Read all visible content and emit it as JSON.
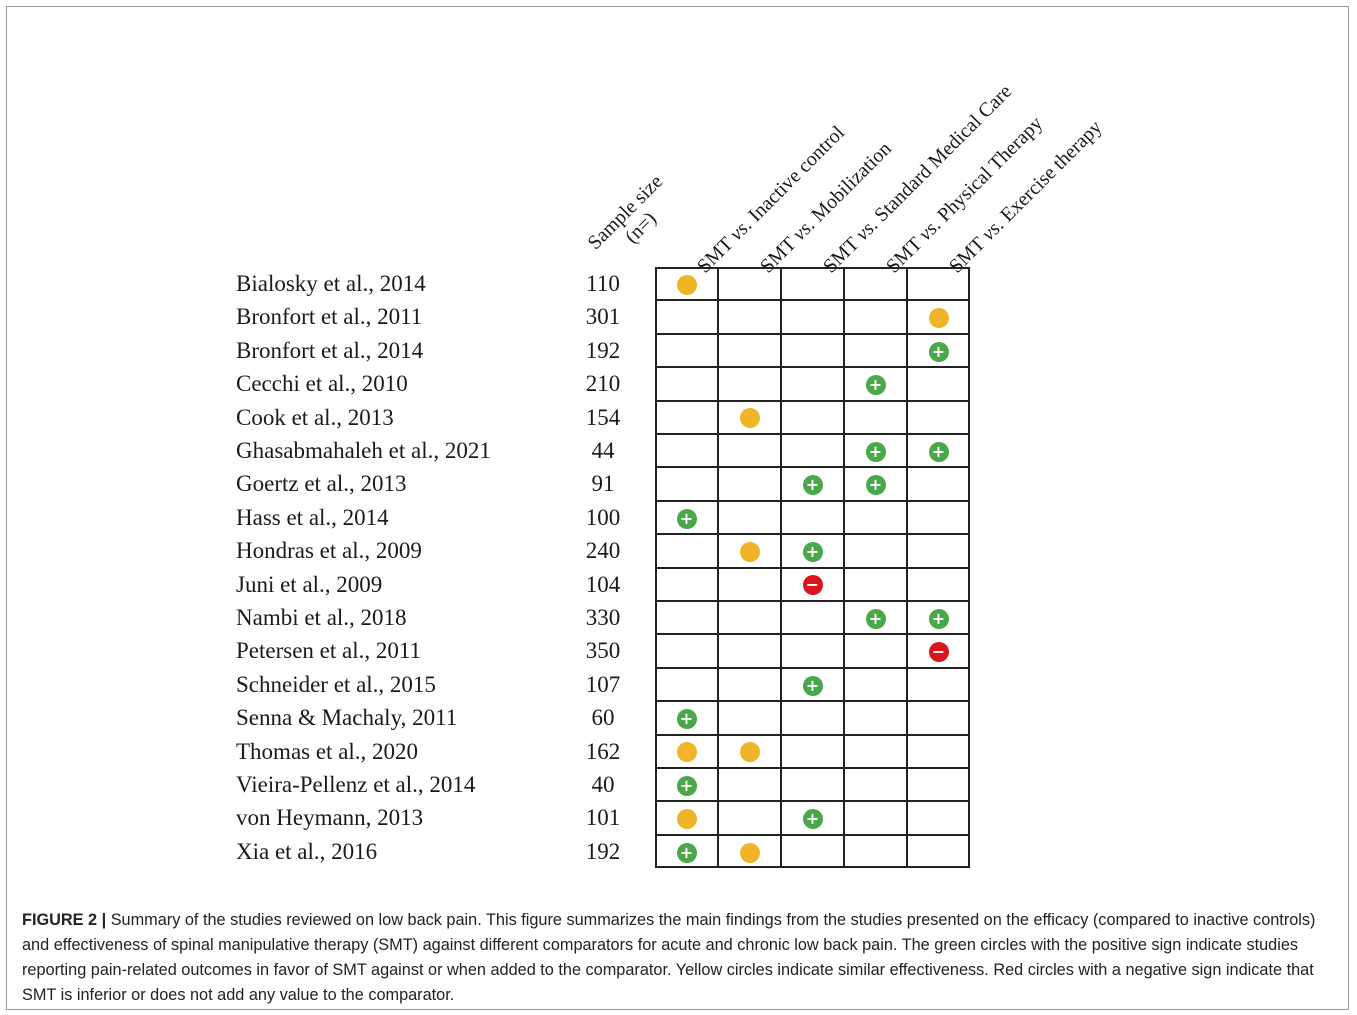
{
  "columns": [
    {
      "pre": "SMT ",
      "vs": "vs",
      "post": ". Inactive control"
    },
    {
      "pre": "SMT ",
      "vs": "vs",
      "post": ". Mobilization"
    },
    {
      "pre": "SMT ",
      "vs": "vs",
      "post": ". Standard Medical Care"
    },
    {
      "pre": "SMT ",
      "vs": "vs",
      "post": ". Physical Therapy"
    },
    {
      "pre": "SMT ",
      "vs": "vs",
      "post": ". Exercise therapy"
    }
  ],
  "sample_header": {
    "line1": "Sample size",
    "line2": "(n=)"
  },
  "studies": [
    {
      "name": "Bialosky et al., 2014",
      "n": "110",
      "results": [
        "neutral",
        "",
        "",
        "",
        ""
      ]
    },
    {
      "name": "Bronfort et al., 2011",
      "n": "301",
      "results": [
        "",
        "",
        "",
        "",
        "neutral"
      ]
    },
    {
      "name": "Bronfort et al., 2014",
      "n": "192",
      "results": [
        "",
        "",
        "",
        "",
        "positive"
      ]
    },
    {
      "name": "Cecchi et al., 2010",
      "n": "210",
      "results": [
        "",
        "",
        "",
        "positive",
        ""
      ]
    },
    {
      "name": "Cook et al., 2013",
      "n": "154",
      "results": [
        "",
        "neutral",
        "",
        "",
        ""
      ]
    },
    {
      "name": "Ghasabmahaleh et al., 2021",
      "n": "44",
      "results": [
        "",
        "",
        "",
        "positive",
        "positive"
      ]
    },
    {
      "name": "Goertz et al., 2013",
      "n": "91",
      "results": [
        "",
        "",
        "positive",
        "positive",
        ""
      ]
    },
    {
      "name": "Hass et al., 2014",
      "n": "100",
      "results": [
        "positive",
        "",
        "",
        "",
        ""
      ]
    },
    {
      "name": "Hondras et al., 2009",
      "n": "240",
      "results": [
        "",
        "neutral",
        "positive",
        "",
        ""
      ]
    },
    {
      "name": "Juni et al., 2009",
      "n": "104",
      "results": [
        "",
        "",
        "negative",
        "",
        ""
      ]
    },
    {
      "name": "Nambi et al., 2018",
      "n": "330",
      "results": [
        "",
        "",
        "",
        "positive",
        "positive"
      ]
    },
    {
      "name": "Petersen et al., 2011",
      "n": "350",
      "results": [
        "",
        "",
        "",
        "",
        "negative"
      ]
    },
    {
      "name": "Schneider et al., 2015",
      "n": "107",
      "results": [
        "",
        "",
        "positive",
        "",
        ""
      ]
    },
    {
      "name": "Senna & Machaly, 2011",
      "n": "60",
      "results": [
        "positive",
        "",
        "",
        "",
        ""
      ]
    },
    {
      "name": "Thomas et al., 2020",
      "n": "162",
      "results": [
        "neutral",
        "neutral",
        "",
        "",
        ""
      ]
    },
    {
      "name": "Vieira-Pellenz et al., 2014",
      "n": "40",
      "results": [
        "positive",
        "",
        "",
        "",
        ""
      ]
    },
    {
      "name": "von Heymann, 2013",
      "n": "101",
      "results": [
        "neutral",
        "",
        "positive",
        "",
        ""
      ]
    },
    {
      "name": "Xia et al., 2016",
      "n": "192",
      "results": [
        "positive",
        "neutral",
        "",
        "",
        ""
      ]
    }
  ],
  "legend_colors": {
    "positive": "#4aa84a",
    "neutral": "#f0b429",
    "negative": "#d9141c"
  },
  "caption": {
    "label": "FIGURE 2 |",
    "text": " Summary of the studies reviewed on low back pain. This figure summarizes the main findings from the studies presented on the efficacy (compared to inactive controls) and effectiveness of spinal manipulative therapy (SMT) against different comparators for acute and chronic low back pain. The green circles with the positive sign indicate studies reporting pain-related outcomes in favor of SMT against or when added to the comparator. Yellow circles indicate similar effectiveness. Red circles with a negative sign indicate that SMT is inferior or does not add any value to the comparator."
  }
}
